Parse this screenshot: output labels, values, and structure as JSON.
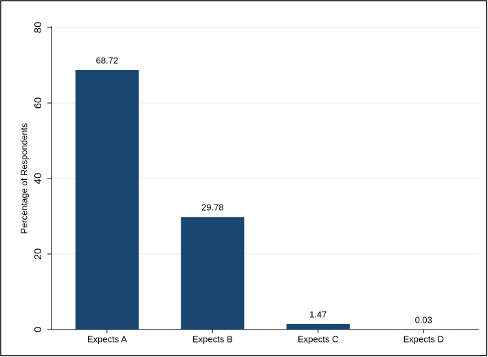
{
  "chart_data": {
    "type": "bar",
    "y_label": "Percentage of Respondents",
    "categories": [
      "Expects A",
      "Expects B",
      "Expects C",
      "Expects D"
    ],
    "values": [
      68.72,
      29.78,
      1.47,
      0.03
    ],
    "color": "#1a476f",
    "ylim": [
      0,
      80
    ],
    "yticks": [
      0,
      20,
      40,
      60,
      80
    ],
    "grid": true
  }
}
